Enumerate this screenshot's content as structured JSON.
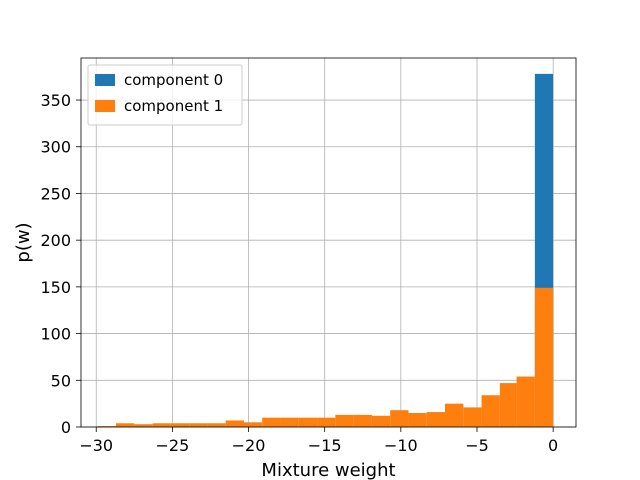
{
  "chart_data": {
    "type": "bar",
    "subtype": "overlaid-histogram",
    "title": "",
    "xlabel": "Mixture weight",
    "ylabel": "p(w)",
    "xlim": [
      -31.0,
      1.5
    ],
    "ylim": [
      0,
      395
    ],
    "xticks": [
      -30,
      -25,
      -20,
      -15,
      -10,
      -5,
      0
    ],
    "xtick_labels": [
      "−30",
      "−25",
      "−20",
      "−15",
      "−10",
      "−5",
      "0"
    ],
    "yticks": [
      0,
      50,
      100,
      150,
      200,
      250,
      300,
      350
    ],
    "ytick_labels": [
      "0",
      "50",
      "100",
      "150",
      "200",
      "250",
      "300",
      "350"
    ],
    "grid": true,
    "legend_position": "top-left",
    "series": [
      {
        "name": "component 0",
        "color": "#1f77b4",
        "bins": [
          {
            "x0": -1.2,
            "x1": 0.0,
            "count": 378
          }
        ]
      },
      {
        "name": "component 1",
        "color": "#ff7f0e",
        "bins": [
          {
            "x0": -29.9,
            "x1": -28.7,
            "count": 1
          },
          {
            "x0": -28.7,
            "x1": -27.5,
            "count": 4
          },
          {
            "x0": -27.5,
            "x1": -26.3,
            "count": 3
          },
          {
            "x0": -26.3,
            "x1": -25.1,
            "count": 4
          },
          {
            "x0": -25.1,
            "x1": -23.9,
            "count": 4
          },
          {
            "x0": -23.9,
            "x1": -22.7,
            "count": 4
          },
          {
            "x0": -22.7,
            "x1": -21.5,
            "count": 4
          },
          {
            "x0": -21.5,
            "x1": -20.3,
            "count": 7
          },
          {
            "x0": -20.3,
            "x1": -19.1,
            "count": 5
          },
          {
            "x0": -19.1,
            "x1": -17.9,
            "count": 10
          },
          {
            "x0": -17.9,
            "x1": -16.7,
            "count": 10
          },
          {
            "x0": -16.7,
            "x1": -15.5,
            "count": 10
          },
          {
            "x0": -15.5,
            "x1": -14.3,
            "count": 10
          },
          {
            "x0": -14.3,
            "x1": -13.1,
            "count": 13
          },
          {
            "x0": -13.1,
            "x1": -11.9,
            "count": 13
          },
          {
            "x0": -11.9,
            "x1": -10.7,
            "count": 12
          },
          {
            "x0": -10.7,
            "x1": -9.5,
            "count": 18
          },
          {
            "x0": -9.5,
            "x1": -8.3,
            "count": 15
          },
          {
            "x0": -8.3,
            "x1": -7.1,
            "count": 16
          },
          {
            "x0": -7.1,
            "x1": -5.9,
            "count": 25
          },
          {
            "x0": -5.9,
            "x1": -4.7,
            "count": 21
          },
          {
            "x0": -4.7,
            "x1": -3.5,
            "count": 34
          },
          {
            "x0": -3.5,
            "x1": -2.4,
            "count": 47
          },
          {
            "x0": -2.4,
            "x1": -1.2,
            "count": 54
          },
          {
            "x0": -1.2,
            "x1": 0.0,
            "count": 149
          }
        ]
      }
    ]
  }
}
